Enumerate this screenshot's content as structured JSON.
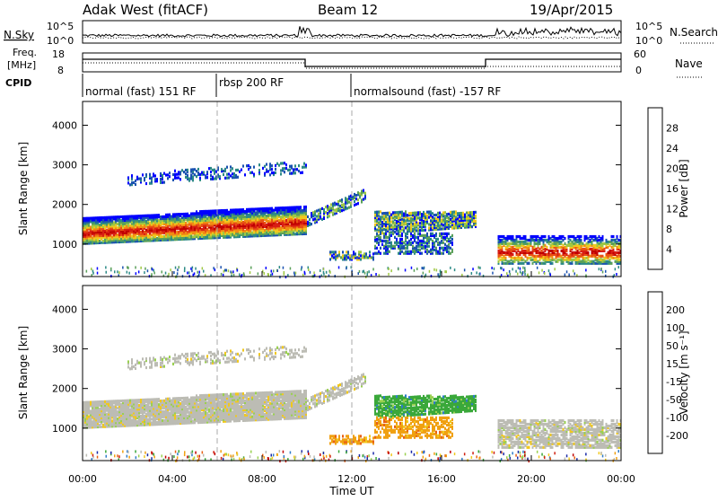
{
  "header": {
    "title": "Adak West (fitACF)",
    "beam": "Beam 12",
    "date": "19/Apr/2015"
  },
  "colors": {
    "power_scale": [
      "#0000ff",
      "#1a52b0",
      "#2c8a86",
      "#5aa05a",
      "#9fc843",
      "#f0c81e",
      "#f08c14",
      "#e85014",
      "#d81e14",
      "#c00000"
    ],
    "velocity_scale": [
      "#1a2aa8",
      "#2e7cc8",
      "#3aa83a",
      "#9ad050",
      "#bcbcb4",
      "#f0c81e",
      "#f0a010",
      "#e86014",
      "#d02010",
      "#c00000"
    ]
  },
  "chart_data": [
    {
      "type": "line",
      "name": "nsky-panel",
      "left_label": "N.Sky",
      "right_label": "N.Search",
      "left_ticks": [
        "10^5",
        "10^0"
      ],
      "right_ticks": [
        "10^5",
        "10^0"
      ]
    },
    {
      "type": "line",
      "name": "freq-panel",
      "left_label_1": "Freq.",
      "left_label_2": "[MHz]",
      "right_label": "Nave",
      "left_ticks": [
        "18",
        "8"
      ],
      "right_ticks": [
        "60",
        "0"
      ]
    },
    {
      "type": "table",
      "name": "cpid-panel",
      "label": "CPID",
      "modes": [
        {
          "label": "normal (fast) 151 RF",
          "start_h": 0,
          "end_h": 6
        },
        {
          "label": "rbsp 200 RF",
          "start_h": 6,
          "end_h": 12
        },
        {
          "label": "normalsound (fast) -157 RF",
          "start_h": 12,
          "end_h": 24
        }
      ]
    },
    {
      "type": "heatmap",
      "name": "power-panel",
      "ylabel": "Slant Range [km]",
      "y_ticks": [
        1000,
        2000,
        3000,
        4000
      ],
      "ylim": [
        180,
        4600
      ],
      "xlim": [
        0,
        24
      ],
      "colorbar_label": "Power [dB]",
      "colorbar_ticks": [
        4,
        8,
        12,
        16,
        20,
        24,
        28
      ]
    },
    {
      "type": "heatmap",
      "name": "velocity-panel",
      "ylabel": "Slant Range [km]",
      "y_ticks": [
        1000,
        2000,
        3000,
        4000
      ],
      "ylim": [
        180,
        4600
      ],
      "xlim": [
        0,
        24
      ],
      "xlabel": "Time UT",
      "x_ticks": [
        "00:00",
        "04:00",
        "08:00",
        "12:00",
        "16:00",
        "20:00",
        "00:00"
      ],
      "colorbar_label": "Velocity [m s⁻¹]",
      "colorbar_ticks": [
        "200",
        "100",
        "50",
        "15",
        "-15",
        "-50",
        "-100",
        "-200"
      ]
    }
  ]
}
